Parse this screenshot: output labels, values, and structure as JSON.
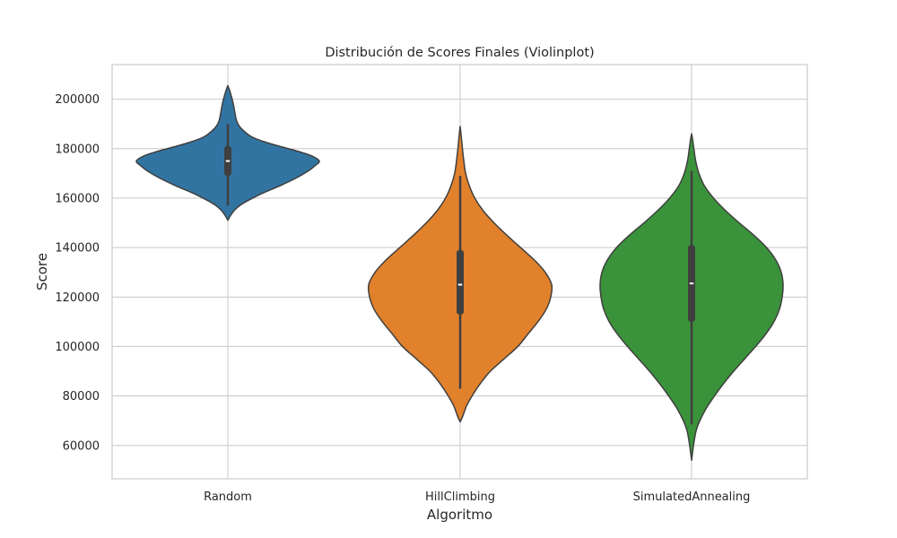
{
  "chart_data": {
    "type": "violin",
    "title": "Distribución de Scores Finales (Violinplot)",
    "xlabel": "Algoritmo",
    "ylabel": "Score",
    "ylim": [
      46500,
      214000
    ],
    "yticks": [
      60000,
      80000,
      100000,
      120000,
      140000,
      160000,
      180000,
      200000
    ],
    "ytick_labels": [
      "60000",
      "80000",
      "100000",
      "120000",
      "140000",
      "160000",
      "180000",
      "200000"
    ],
    "grid": true,
    "categories": [
      "Random",
      "HillClimbing",
      "SimulatedAnnealing"
    ],
    "colors": [
      "#3274a1",
      "#e1812c",
      "#3a923a"
    ],
    "series": [
      {
        "category": "Random",
        "min": 151000,
        "max": 205500,
        "median": 175000,
        "q1": 169000,
        "q3": 181000,
        "whisker_low": 157000,
        "whisker_high": 190000,
        "density": [
          [
            151000,
            0.0
          ],
          [
            153000,
            0.03
          ],
          [
            155000,
            0.07
          ],
          [
            157000,
            0.13
          ],
          [
            159000,
            0.22
          ],
          [
            162000,
            0.38
          ],
          [
            165000,
            0.57
          ],
          [
            168000,
            0.74
          ],
          [
            171000,
            0.88
          ],
          [
            173000,
            0.95
          ],
          [
            175000,
            1.0
          ],
          [
            177000,
            0.92
          ],
          [
            179000,
            0.76
          ],
          [
            181000,
            0.56
          ],
          [
            183000,
            0.38
          ],
          [
            185000,
            0.25
          ],
          [
            188000,
            0.15
          ],
          [
            190000,
            0.11
          ],
          [
            192000,
            0.09
          ],
          [
            195000,
            0.075
          ],
          [
            198000,
            0.06
          ],
          [
            201000,
            0.04
          ],
          [
            203500,
            0.02
          ],
          [
            205500,
            0.0
          ]
        ]
      },
      {
        "category": "HillClimbing",
        "min": 69500,
        "max": 189000,
        "median": 125000,
        "q1": 113000,
        "q3": 139000,
        "whisker_low": 83000,
        "whisker_high": 169000,
        "density": [
          [
            69500,
            0.0
          ],
          [
            72000,
            0.03
          ],
          [
            76000,
            0.07
          ],
          [
            80000,
            0.13
          ],
          [
            85000,
            0.22
          ],
          [
            90000,
            0.33
          ],
          [
            95000,
            0.48
          ],
          [
            100000,
            0.63
          ],
          [
            105000,
            0.74
          ],
          [
            110000,
            0.85
          ],
          [
            115000,
            0.94
          ],
          [
            120000,
            0.99
          ],
          [
            125000,
            1.0
          ],
          [
            130000,
            0.93
          ],
          [
            135000,
            0.81
          ],
          [
            140000,
            0.66
          ],
          [
            145000,
            0.51
          ],
          [
            150000,
            0.37
          ],
          [
            155000,
            0.25
          ],
          [
            160000,
            0.16
          ],
          [
            165000,
            0.1
          ],
          [
            170000,
            0.06
          ],
          [
            175000,
            0.04
          ],
          [
            180000,
            0.025
          ],
          [
            185000,
            0.012
          ],
          [
            189000,
            0.0
          ]
        ]
      },
      {
        "category": "SimulatedAnnealing",
        "min": 54000,
        "max": 186000,
        "median": 125500,
        "q1": 110000,
        "q3": 141000,
        "whisker_low": 68500,
        "whisker_high": 171000,
        "density": [
          [
            54000,
            0.0
          ],
          [
            57000,
            0.01
          ],
          [
            61000,
            0.025
          ],
          [
            66000,
            0.05
          ],
          [
            70000,
            0.09
          ],
          [
            75000,
            0.16
          ],
          [
            80000,
            0.25
          ],
          [
            85000,
            0.35
          ],
          [
            90000,
            0.46
          ],
          [
            95000,
            0.58
          ],
          [
            100000,
            0.7
          ],
          [
            105000,
            0.81
          ],
          [
            110000,
            0.9
          ],
          [
            115000,
            0.96
          ],
          [
            120000,
            0.99
          ],
          [
            125000,
            1.0
          ],
          [
            130000,
            0.98
          ],
          [
            135000,
            0.92
          ],
          [
            140000,
            0.82
          ],
          [
            145000,
            0.68
          ],
          [
            150000,
            0.52
          ],
          [
            155000,
            0.37
          ],
          [
            160000,
            0.24
          ],
          [
            165000,
            0.14
          ],
          [
            170000,
            0.08
          ],
          [
            175000,
            0.045
          ],
          [
            180000,
            0.025
          ],
          [
            184000,
            0.01
          ],
          [
            186000,
            0.0
          ]
        ]
      }
    ]
  }
}
